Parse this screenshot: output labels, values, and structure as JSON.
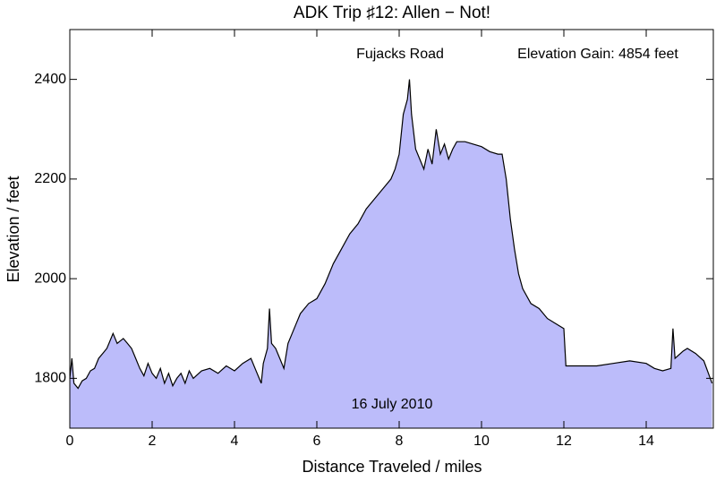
{
  "chart_data": {
    "type": "area",
    "title": "ADK Trip ♯12: Allen − Not!",
    "xlabel": "Distance Traveled / miles",
    "ylabel": "Elevation / feet",
    "annotations": [
      "Fujacks Road",
      "Elevation Gain: 4854 feet",
      "16 July 2010"
    ],
    "color": "#bcbcfa",
    "line_color": "#000000",
    "xlim": [
      0,
      15.63
    ],
    "ylim": [
      1700,
      2500
    ],
    "xticks": [
      0,
      2,
      4,
      6,
      8,
      10,
      12,
      14
    ],
    "yticks": [
      1800,
      2000,
      2200,
      2400
    ],
    "x": [
      0,
      0.05,
      0.1,
      0.2,
      0.3,
      0.4,
      0.5,
      0.6,
      0.7,
      0.8,
      0.9,
      1.0,
      1.05,
      1.15,
      1.3,
      1.4,
      1.5,
      1.6,
      1.7,
      1.8,
      1.9,
      2.0,
      2.1,
      2.2,
      2.3,
      2.4,
      2.5,
      2.6,
      2.7,
      2.8,
      2.9,
      3.0,
      3.2,
      3.4,
      3.6,
      3.8,
      4.0,
      4.2,
      4.4,
      4.5,
      4.6,
      4.65,
      4.7,
      4.8,
      4.85,
      4.9,
      5.0,
      5.1,
      5.2,
      5.3,
      5.4,
      5.5,
      5.6,
      5.8,
      6.0,
      6.2,
      6.4,
      6.6,
      6.8,
      7.0,
      7.2,
      7.4,
      7.6,
      7.8,
      7.9,
      8.0,
      8.1,
      8.2,
      8.25,
      8.3,
      8.4,
      8.5,
      8.6,
      8.7,
      8.8,
      8.9,
      9.0,
      9.1,
      9.2,
      9.3,
      9.4,
      9.6,
      9.8,
      10.0,
      10.2,
      10.4,
      10.5,
      10.6,
      10.7,
      10.8,
      10.9,
      11.0,
      11.2,
      11.4,
      11.6,
      11.8,
      12.0,
      12.05,
      12.4,
      12.8,
      13.2,
      13.6,
      14.0,
      14.2,
      14.4,
      14.6,
      14.65,
      14.7,
      14.9,
      15.0,
      15.2,
      15.4,
      15.6
    ],
    "values": [
      1800,
      1840,
      1790,
      1780,
      1795,
      1800,
      1815,
      1820,
      1840,
      1850,
      1860,
      1880,
      1890,
      1870,
      1880,
      1870,
      1860,
      1840,
      1820,
      1805,
      1830,
      1810,
      1800,
      1820,
      1790,
      1810,
      1785,
      1800,
      1810,
      1790,
      1815,
      1800,
      1815,
      1820,
      1810,
      1825,
      1815,
      1830,
      1840,
      1820,
      1800,
      1790,
      1830,
      1860,
      1940,
      1870,
      1860,
      1840,
      1820,
      1870,
      1890,
      1910,
      1930,
      1950,
      1960,
      1990,
      2030,
      2060,
      2090,
      2110,
      2140,
      2160,
      2180,
      2200,
      2220,
      2250,
      2330,
      2360,
      2400,
      2330,
      2260,
      2240,
      2220,
      2260,
      2230,
      2300,
      2250,
      2270,
      2240,
      2260,
      2275,
      2275,
      2270,
      2265,
      2255,
      2250,
      2250,
      2200,
      2120,
      2060,
      2010,
      1980,
      1950,
      1940,
      1920,
      1910,
      1900,
      1825,
      1825,
      1825,
      1830,
      1835,
      1830,
      1820,
      1815,
      1820,
      1900,
      1840,
      1855,
      1860,
      1850,
      1835,
      1790
    ]
  }
}
